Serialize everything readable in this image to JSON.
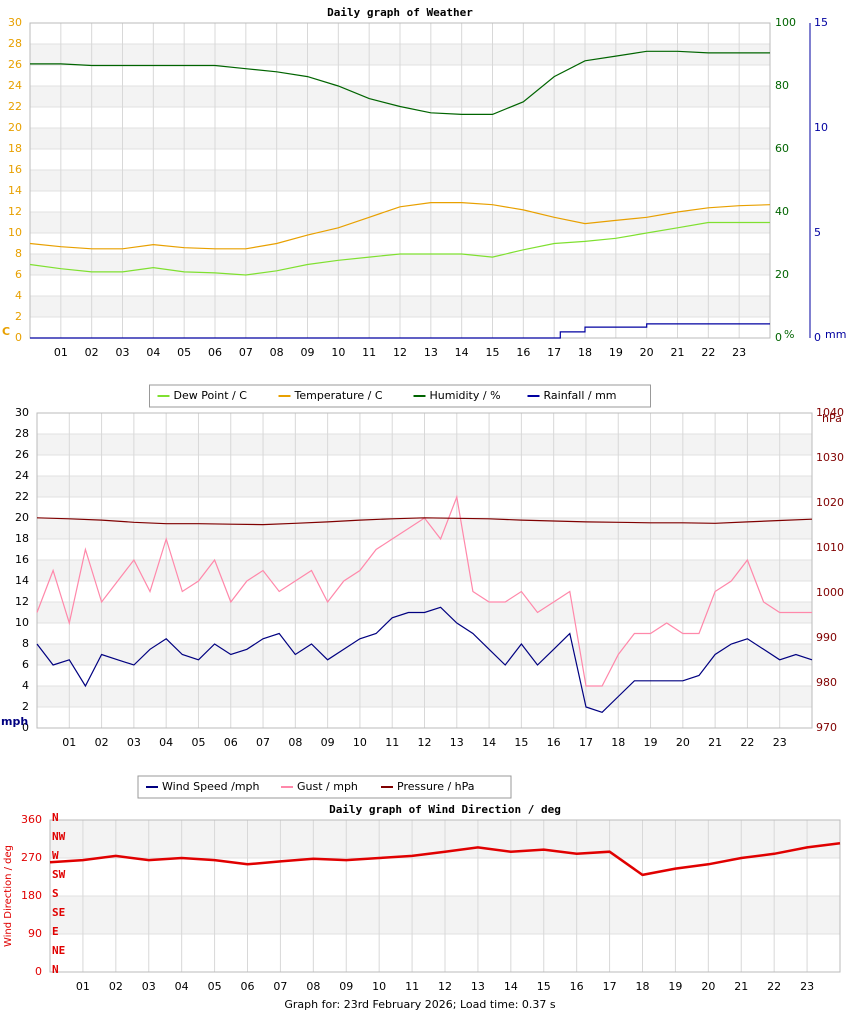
{
  "chart_data": [
    {
      "type": "line",
      "title": "Daily graph of Weather",
      "ylabel": "C",
      "y2label": "%",
      "y3label": "mm",
      "y_color": "#e8a000",
      "y2_color": "#006400",
      "y3_color": "#0000a0",
      "x": [
        0,
        1,
        2,
        3,
        4,
        5,
        6,
        7,
        8,
        9,
        10,
        11,
        12,
        13,
        14,
        15,
        16,
        17,
        18,
        19,
        20,
        21,
        22,
        23,
        24
      ],
      "xlim": [
        0,
        24
      ],
      "xticks": [
        {
          "value": 1,
          "label": "01"
        },
        {
          "value": 2,
          "label": "02"
        },
        {
          "value": 3,
          "label": "03"
        },
        {
          "value": 4,
          "label": "04"
        },
        {
          "value": 5,
          "label": "05"
        },
        {
          "value": 6,
          "label": "06"
        },
        {
          "value": 7,
          "label": "07"
        },
        {
          "value": 8,
          "label": "08"
        },
        {
          "value": 9,
          "label": "09"
        },
        {
          "value": 10,
          "label": "10"
        },
        {
          "value": 11,
          "label": "11"
        },
        {
          "value": 12,
          "label": "12"
        },
        {
          "value": 13,
          "label": "13"
        },
        {
          "value": 14,
          "label": "14"
        },
        {
          "value": 15,
          "label": "15"
        },
        {
          "value": 16,
          "label": "16"
        },
        {
          "value": 17,
          "label": "17"
        },
        {
          "value": 18,
          "label": "18"
        },
        {
          "value": 19,
          "label": "19"
        },
        {
          "value": 20,
          "label": "20"
        },
        {
          "value": 21,
          "label": "21"
        },
        {
          "value": 22,
          "label": "22"
        },
        {
          "value": 23,
          "label": "23"
        }
      ],
      "ylim": [
        0,
        30
      ],
      "yticks": [
        0,
        2,
        4,
        6,
        8,
        10,
        12,
        14,
        16,
        18,
        20,
        22,
        24,
        26,
        28,
        30
      ],
      "y2lim": [
        0,
        100
      ],
      "y2ticks": [
        0,
        20,
        40,
        60,
        80,
        100
      ],
      "y3lim": [
        0,
        15
      ],
      "y3ticks": [
        0,
        5,
        10,
        15
      ],
      "grid": true,
      "series": [
        {
          "name": "Dew Point / C",
          "color": "#7fe030",
          "values": [
            7.0,
            6.6,
            6.3,
            6.3,
            6.7,
            6.3,
            6.2,
            6.0,
            6.4,
            7.0,
            7.4,
            7.7,
            8.0,
            8.0,
            8.0,
            7.7,
            8.4,
            9.0,
            9.2,
            9.5,
            10.0,
            10.5,
            11.0,
            11.0,
            11.0
          ]
        },
        {
          "name": "Temperature / C",
          "color": "#e8a000",
          "values": [
            9.0,
            8.7,
            8.5,
            8.5,
            8.9,
            8.6,
            8.5,
            8.5,
            9.0,
            9.8,
            10.5,
            11.5,
            12.5,
            12.9,
            12.9,
            12.7,
            12.2,
            11.5,
            10.9,
            11.2,
            11.5,
            12.0,
            12.4,
            12.6,
            12.7
          ]
        },
        {
          "name": "Humidity / %",
          "color": "#006400",
          "axis": "y2",
          "values": [
            87,
            87,
            86.5,
            86.5,
            86.5,
            86.5,
            86.5,
            85.5,
            84.5,
            83,
            80,
            76,
            73.5,
            71.5,
            71,
            71,
            75,
            83,
            88,
            89.5,
            91,
            91,
            90.5,
            90.5,
            90.5
          ]
        },
        {
          "name": "Rainfall / mm",
          "color": "#0000a0",
          "axis": "y3",
          "x": [
            0,
            17.2,
            17.2,
            18,
            18,
            20,
            20,
            24
          ],
          "values": [
            0,
            0,
            0.29,
            0.29,
            0.52,
            0.52,
            0.67,
            0.67
          ]
        }
      ]
    },
    {
      "type": "line",
      "ylabel": "mph",
      "y2label": "hPa",
      "y_color": "#000000",
      "y2_color": "#800000",
      "ylabel_color": "#000080",
      "x": [
        0,
        1,
        2,
        3,
        4,
        5,
        6,
        7,
        8,
        9,
        10,
        11,
        12,
        13,
        14,
        15,
        16,
        17,
        18,
        19,
        20,
        21,
        22,
        23,
        24
      ],
      "xlim": [
        0,
        24
      ],
      "xticks": [
        {
          "value": 1,
          "label": "01"
        },
        {
          "value": 2,
          "label": "02"
        },
        {
          "value": 3,
          "label": "03"
        },
        {
          "value": 4,
          "label": "04"
        },
        {
          "value": 5,
          "label": "05"
        },
        {
          "value": 6,
          "label": "06"
        },
        {
          "value": 7,
          "label": "07"
        },
        {
          "value": 8,
          "label": "08"
        },
        {
          "value": 9,
          "label": "09"
        },
        {
          "value": 10,
          "label": "10"
        },
        {
          "value": 11,
          "label": "11"
        },
        {
          "value": 12,
          "label": "12"
        },
        {
          "value": 13,
          "label": "13"
        },
        {
          "value": 14,
          "label": "14"
        },
        {
          "value": 15,
          "label": "15"
        },
        {
          "value": 16,
          "label": "16"
        },
        {
          "value": 17,
          "label": "17"
        },
        {
          "value": 18,
          "label": "18"
        },
        {
          "value": 19,
          "label": "19"
        },
        {
          "value": 20,
          "label": "20"
        },
        {
          "value": 21,
          "label": "21"
        },
        {
          "value": 22,
          "label": "22"
        },
        {
          "value": 23,
          "label": "23"
        }
      ],
      "ylim": [
        0,
        30
      ],
      "yticks": [
        0,
        2,
        4,
        6,
        8,
        10,
        12,
        14,
        16,
        18,
        20,
        22,
        24,
        26,
        28,
        30
      ],
      "y2lim": [
        970,
        1040
      ],
      "y2ticks": [
        970,
        980,
        990,
        1000,
        1010,
        1020,
        1030,
        1040
      ],
      "grid": true,
      "series": [
        {
          "name": "Wind Speed /mph",
          "color": "#000080",
          "x": [
            0,
            0.5,
            1,
            1.5,
            2,
            2.5,
            3,
            3.5,
            4,
            4.5,
            5,
            5.5,
            6,
            6.5,
            7,
            7.5,
            8,
            8.5,
            9,
            9.5,
            10,
            10.5,
            11,
            11.5,
            12,
            12.5,
            13,
            13.5,
            14,
            14.5,
            15,
            15.5,
            16,
            16.5,
            17,
            17.5,
            18,
            18.5,
            19,
            19.5,
            20,
            20.5,
            21,
            21.5,
            22,
            22.5,
            23,
            23.5,
            24
          ],
          "values": [
            8,
            6,
            6.5,
            4,
            7,
            6.5,
            6,
            7.5,
            8.5,
            7,
            6.5,
            8,
            7,
            7.5,
            8.5,
            9,
            7,
            8,
            6.5,
            7.5,
            8.5,
            9,
            10.5,
            11,
            11,
            11.5,
            10,
            9,
            7.5,
            6,
            8,
            6,
            7.5,
            9,
            2,
            1.5,
            3,
            4.5,
            4.5,
            4.5,
            4.5,
            5,
            7,
            8,
            8.5,
            7.5,
            6.5,
            7,
            6.5
          ]
        },
        {
          "name": "Gust / mph",
          "color": "#ff88aa",
          "x": [
            0,
            0.5,
            1,
            1.5,
            2,
            2.5,
            3,
            3.5,
            4,
            4.5,
            5,
            5.5,
            6,
            6.5,
            7,
            7.5,
            8,
            8.5,
            9,
            9.5,
            10,
            10.5,
            11,
            11.5,
            12,
            12.5,
            13,
            13.5,
            14,
            14.5,
            15,
            15.5,
            16,
            16.5,
            17,
            17.5,
            18,
            18.5,
            19,
            19.5,
            20,
            20.5,
            21,
            21.5,
            22,
            22.5,
            23,
            23.5,
            24
          ],
          "values": [
            11,
            15,
            10,
            17,
            12,
            14,
            16,
            13,
            18,
            13,
            14,
            16,
            12,
            14,
            15,
            13,
            14,
            15,
            12,
            14,
            15,
            17,
            18,
            19,
            20,
            18,
            22,
            13,
            12,
            12,
            13,
            11,
            12,
            13,
            4,
            4,
            7,
            9,
            9,
            10,
            9,
            9,
            13,
            14,
            16,
            12,
            11,
            11,
            11
          ]
        },
        {
          "name": "Pressure / hPa",
          "color": "#800000",
          "axis": "y2",
          "values": [
            1016.7,
            1016.5,
            1016.2,
            1015.7,
            1015.4,
            1015.4,
            1015.3,
            1015.2,
            1015.5,
            1015.8,
            1016.2,
            1016.5,
            1016.7,
            1016.6,
            1016.5,
            1016.2,
            1016,
            1015.8,
            1015.7,
            1015.6,
            1015.6,
            1015.5,
            1015.8,
            1016.1,
            1016.4
          ]
        }
      ]
    },
    {
      "type": "line",
      "title": "Daily graph of Wind Direction / deg",
      "ylabel": "Wind Direction / deg",
      "y_color": "#e00000",
      "x": [
        0,
        1,
        2,
        3,
        4,
        5,
        6,
        7,
        8,
        9,
        10,
        11,
        12,
        13,
        14,
        15,
        16,
        17,
        18,
        19,
        20,
        21,
        22,
        23,
        24
      ],
      "xlim": [
        0,
        24
      ],
      "xticks": [
        {
          "value": 1,
          "label": "01"
        },
        {
          "value": 2,
          "label": "02"
        },
        {
          "value": 3,
          "label": "03"
        },
        {
          "value": 4,
          "label": "04"
        },
        {
          "value": 5,
          "label": "05"
        },
        {
          "value": 6,
          "label": "06"
        },
        {
          "value": 7,
          "label": "07"
        },
        {
          "value": 8,
          "label": "08"
        },
        {
          "value": 9,
          "label": "09"
        },
        {
          "value": 10,
          "label": "10"
        },
        {
          "value": 11,
          "label": "11"
        },
        {
          "value": 12,
          "label": "12"
        },
        {
          "value": 13,
          "label": "13"
        },
        {
          "value": 14,
          "label": "14"
        },
        {
          "value": 15,
          "label": "15"
        },
        {
          "value": 16,
          "label": "16"
        },
        {
          "value": 17,
          "label": "17"
        },
        {
          "value": 18,
          "label": "18"
        },
        {
          "value": 19,
          "label": "19"
        },
        {
          "value": 20,
          "label": "20"
        },
        {
          "value": 21,
          "label": "21"
        },
        {
          "value": 22,
          "label": "22"
        },
        {
          "value": 23,
          "label": "23"
        }
      ],
      "ylim": [
        0,
        360
      ],
      "yticks": [
        0,
        90,
        180,
        270,
        360
      ],
      "direction_ticks": [
        {
          "value": 0,
          "label": "N"
        },
        {
          "value": 45,
          "label": "NE"
        },
        {
          "value": 90,
          "label": "E"
        },
        {
          "value": 135,
          "label": "SE"
        },
        {
          "value": 180,
          "label": "S"
        },
        {
          "value": 225,
          "label": "SW"
        },
        {
          "value": 270,
          "label": "W"
        },
        {
          "value": 315,
          "label": "NW"
        },
        {
          "value": 360,
          "label": "N"
        }
      ],
      "grid": true,
      "series": [
        {
          "color": "#e00000",
          "values": [
            260,
            265,
            275,
            265,
            270,
            265,
            255,
            262,
            268,
            265,
            270,
            275,
            285,
            295,
            285,
            290,
            280,
            285,
            230,
            245,
            255,
            270,
            280,
            295,
            305
          ]
        }
      ]
    }
  ],
  "footer": "Graph for: 23rd February 2026; Load time: 0.37 s"
}
